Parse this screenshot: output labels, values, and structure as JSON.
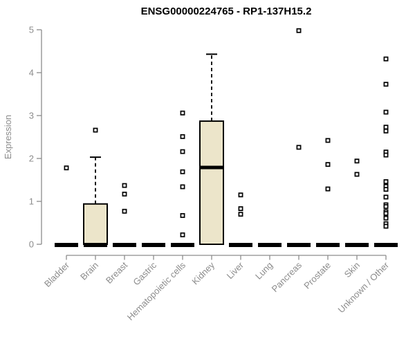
{
  "chart_data": {
    "type": "boxplot",
    "title": "ENSG00000224765 - RP1-137H15.2",
    "ylabel": "Expression",
    "xlabel": "",
    "ylim": [
      0,
      5
    ],
    "yticks": [
      0,
      1,
      2,
      3,
      4,
      5
    ],
    "grid": false,
    "legend": "none",
    "axis_color": "#8C8C8C",
    "box_fill_color": "#ECE5CA",
    "box_stroke_color": "#000000",
    "outlier_marker": "open-square",
    "categories": [
      "Bladder",
      "Brain",
      "Breast",
      "Gastric",
      "Hematopoietic cells",
      "Kidney",
      "Liver",
      "Lung",
      "Pancreas",
      "Prostate",
      "Skin",
      "Unknown / Other"
    ],
    "series": [
      {
        "category": "Bladder",
        "median": 0,
        "q1": 0,
        "q3": 0,
        "whisker_low": 0,
        "whisker_high": 0,
        "outliers": [
          1.78
        ]
      },
      {
        "category": "Brain",
        "median": 0,
        "q1": 0,
        "q3": 0.94,
        "whisker_low": 0,
        "whisker_high": 2.03,
        "outliers": [
          2.66
        ]
      },
      {
        "category": "Breast",
        "median": 0,
        "q1": 0,
        "q3": 0,
        "whisker_low": 0,
        "whisker_high": 0,
        "outliers": [
          1.37,
          1.17,
          0.77
        ]
      },
      {
        "category": "Gastric",
        "median": 0,
        "q1": 0,
        "q3": 0,
        "whisker_low": 0,
        "whisker_high": 0,
        "outliers": []
      },
      {
        "category": "Hematopoietic cells",
        "median": 0,
        "q1": 0,
        "q3": 0,
        "whisker_low": 0,
        "whisker_high": 0,
        "outliers": [
          3.06,
          2.51,
          2.16,
          1.69,
          1.34,
          0.67,
          0.22
        ]
      },
      {
        "category": "Kidney",
        "median": 1.79,
        "q1": 0,
        "q3": 2.87,
        "whisker_low": 0,
        "whisker_high": 4.43,
        "outliers": []
      },
      {
        "category": "Liver",
        "median": 0,
        "q1": 0,
        "q3": 0,
        "whisker_low": 0,
        "whisker_high": 0,
        "outliers": [
          1.15,
          0.83,
          0.7
        ]
      },
      {
        "category": "Lung",
        "median": 0,
        "q1": 0,
        "q3": 0,
        "whisker_low": 0,
        "whisker_high": 0,
        "outliers": []
      },
      {
        "category": "Pancreas",
        "median": 0,
        "q1": 0,
        "q3": 0,
        "whisker_low": 0,
        "whisker_high": 0,
        "outliers": [
          4.98,
          2.26
        ]
      },
      {
        "category": "Prostate",
        "median": 0,
        "q1": 0,
        "q3": 0,
        "whisker_low": 0,
        "whisker_high": 0,
        "outliers": [
          2.42,
          1.86,
          1.29
        ]
      },
      {
        "category": "Skin",
        "median": 0,
        "q1": 0,
        "q3": 0,
        "whisker_low": 0,
        "whisker_high": 0,
        "outliers": [
          1.94,
          1.63
        ]
      },
      {
        "category": "Unknown / Other",
        "median": 0,
        "q1": 0,
        "q3": 0,
        "whisker_low": 0,
        "whisker_high": 0,
        "outliers": [
          4.32,
          3.73,
          3.08,
          2.73,
          2.64,
          2.15,
          2.08,
          1.46,
          1.35,
          1.28,
          1.1,
          0.92,
          0.88,
          0.76,
          0.72,
          0.61,
          0.48,
          0.42
        ]
      }
    ]
  }
}
